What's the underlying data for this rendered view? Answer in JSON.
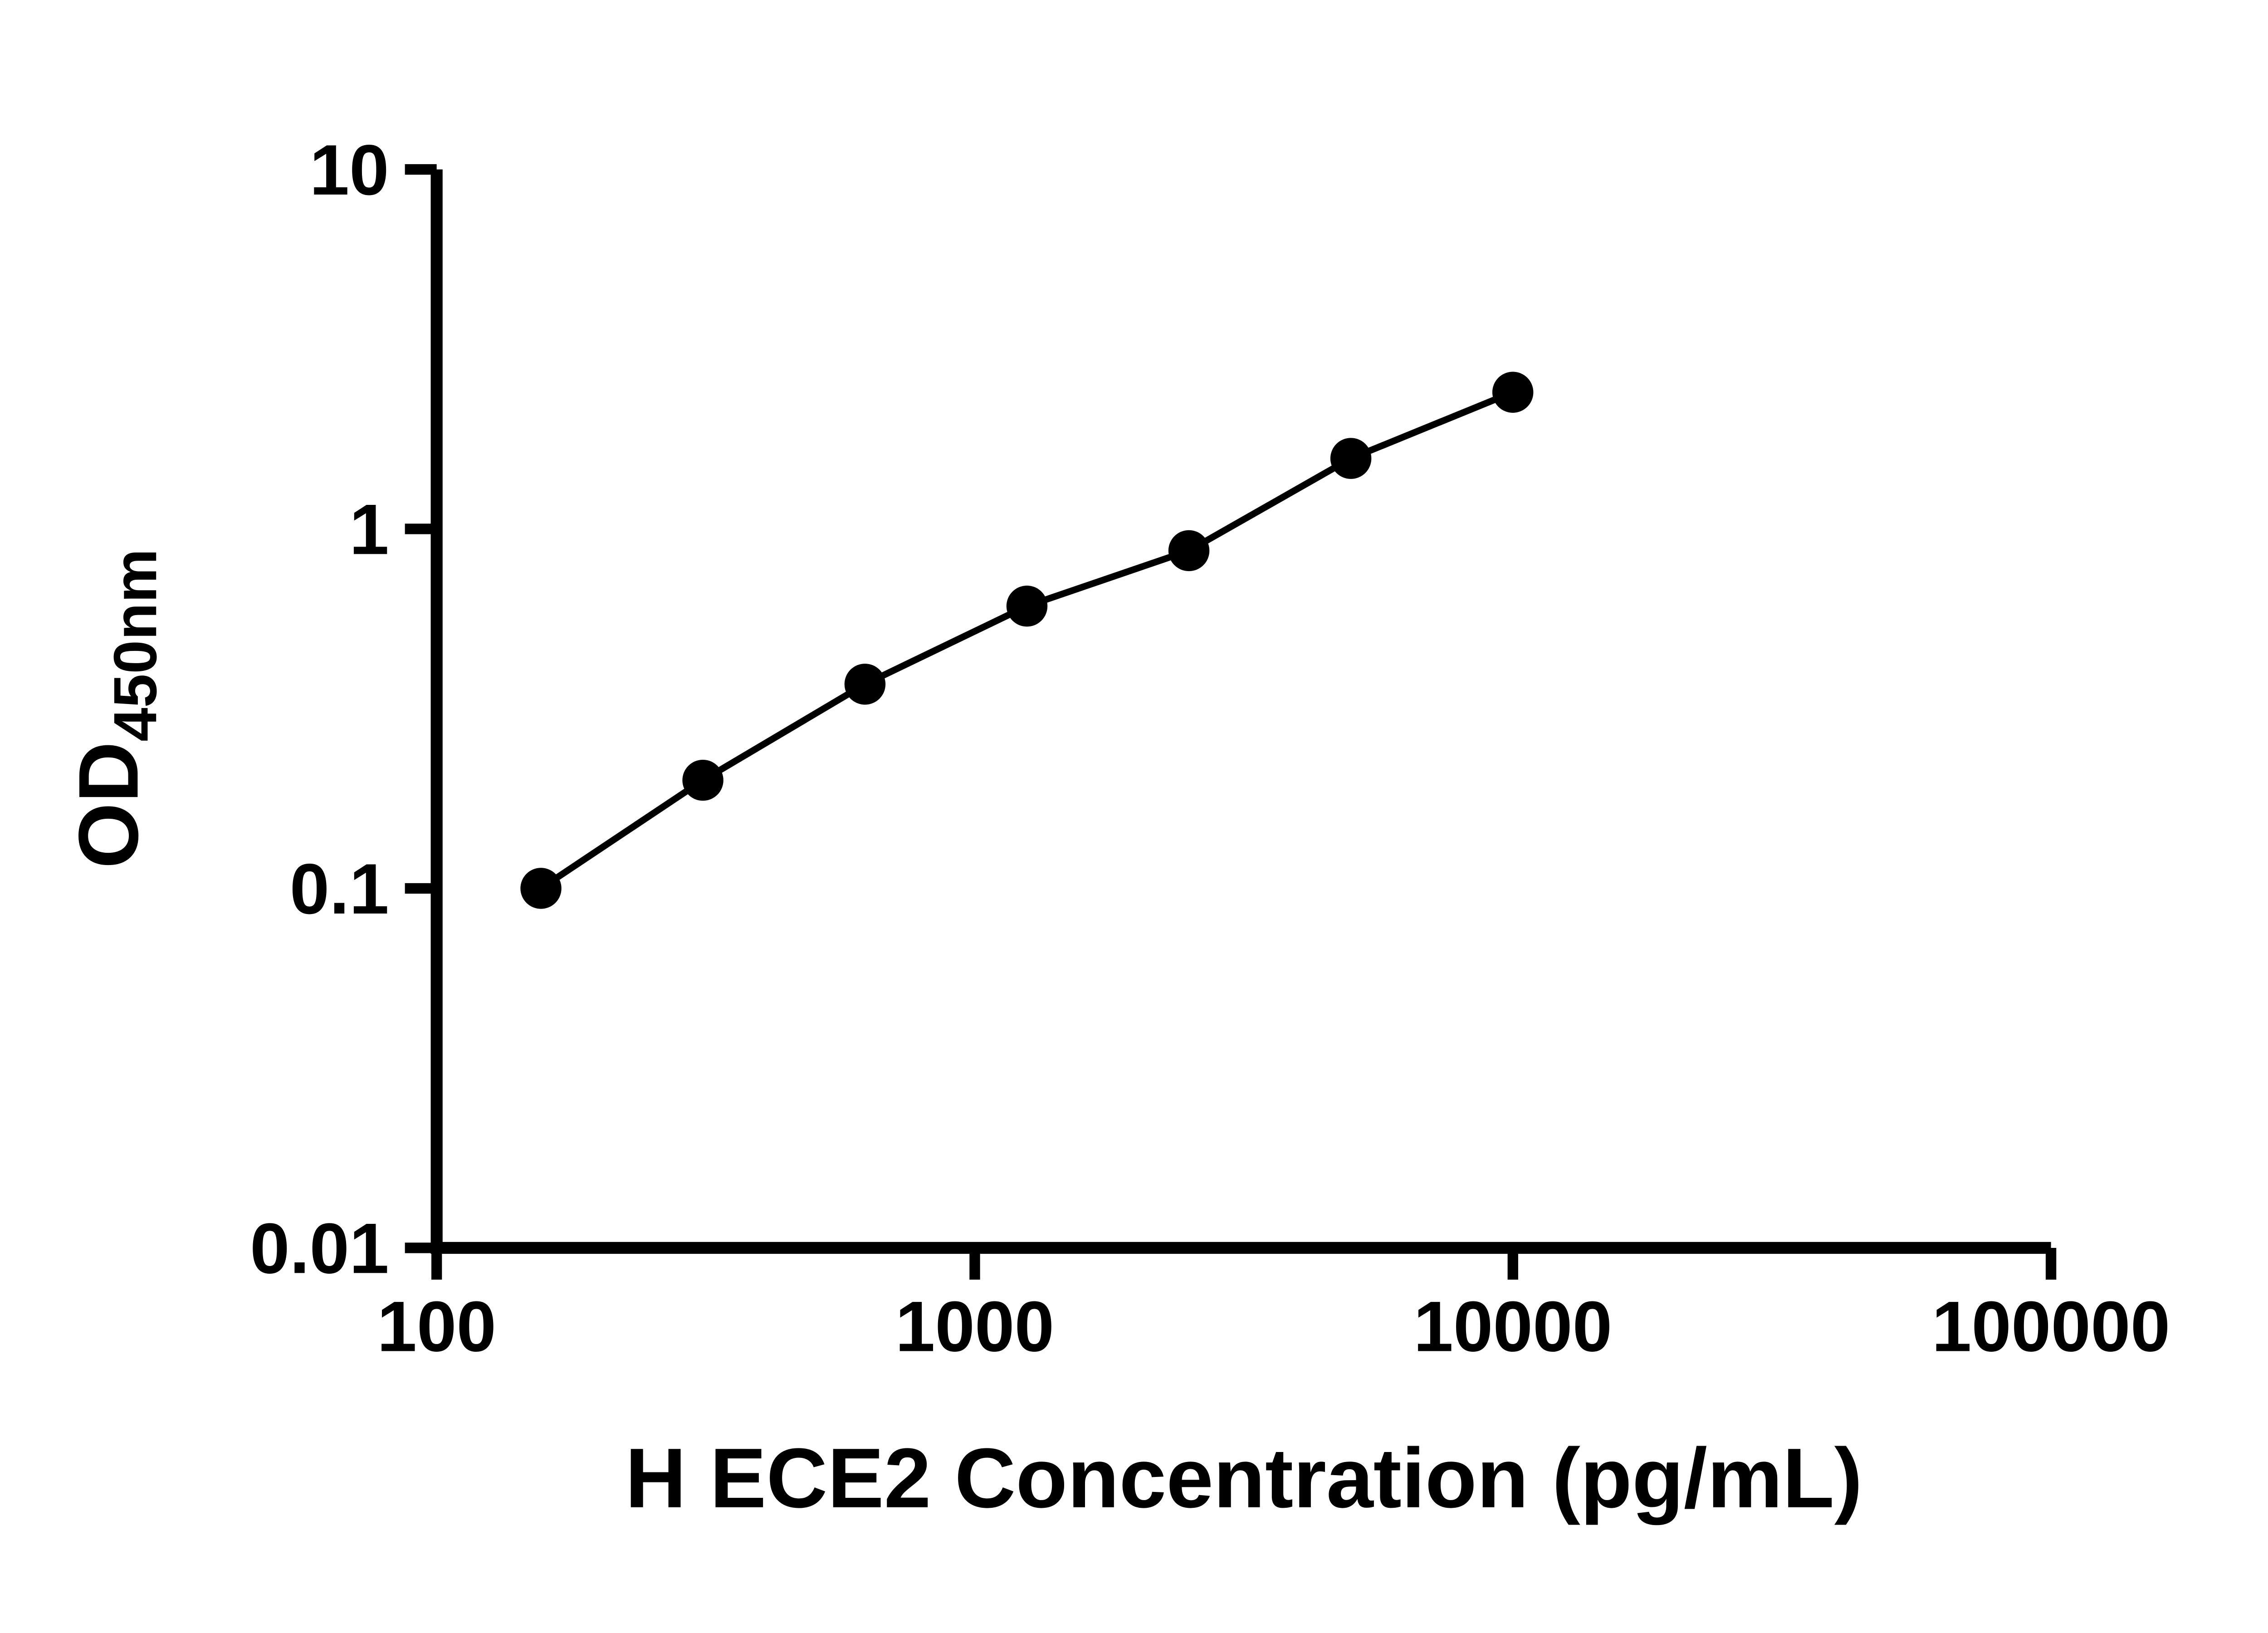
{
  "figure": {
    "background_color": "#ffffff"
  },
  "chart_data": {
    "type": "scatter",
    "title": "",
    "xlabel": "H ECE2 Concentration (pg/mL)",
    "ylabel": "OD",
    "ylabel_subscript": "450nm",
    "x_scale": "log",
    "y_scale": "log",
    "xlim": [
      100,
      100000
    ],
    "ylim": [
      0.01,
      10
    ],
    "x_ticks": [
      100,
      1000,
      10000,
      100000
    ],
    "x_tick_labels": [
      "100",
      "1000",
      "10000",
      "100000"
    ],
    "y_ticks": [
      10,
      1,
      0.1,
      0.01
    ],
    "y_tick_labels": [
      "10",
      "1",
      "0.1",
      "0.01"
    ],
    "series": [
      {
        "x": [
          156.25,
          312.5,
          625,
          1250,
          2500,
          5000,
          10000
        ],
        "y": [
          0.1,
          0.2,
          0.37,
          0.61,
          0.87,
          1.57,
          2.4
        ],
        "marker": "circle",
        "marker_color": "#000000",
        "line_color": "#000000"
      }
    ],
    "grid": false,
    "legend": false,
    "axis_color": "#000000",
    "text_color": "#000000"
  }
}
